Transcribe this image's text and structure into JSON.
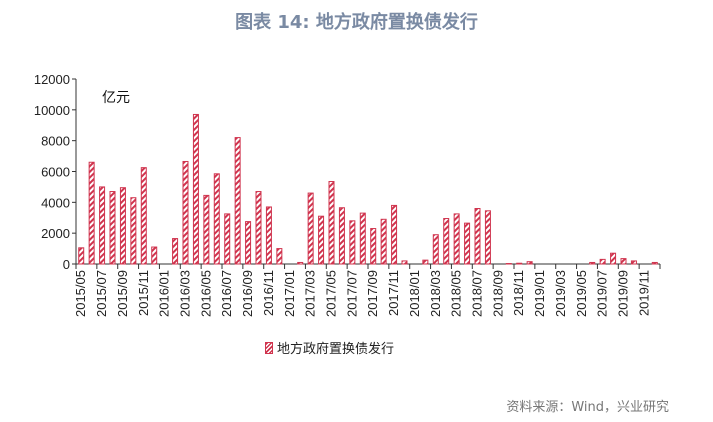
{
  "title": "图表 14: 地方政府置换债发行",
  "source": "资料来源：Wind，兴业研究",
  "colors": {
    "bar": "#d0344e",
    "title": "#7a8aa3"
  },
  "chart_data": {
    "type": "bar",
    "title": "图表 14: 地方政府置换债发行",
    "unit_label": "亿元",
    "ylim": [
      0,
      12000
    ],
    "yticks": [
      0,
      2000,
      4000,
      6000,
      8000,
      10000,
      12000
    ],
    "grid": false,
    "legend_position": "bottom",
    "categories": [
      "2015/05",
      "2015/06",
      "2015/07",
      "2015/08",
      "2015/09",
      "2015/10",
      "2015/11",
      "2015/12",
      "2016/01",
      "2016/02",
      "2016/03",
      "2016/04",
      "2016/05",
      "2016/06",
      "2016/07",
      "2016/08",
      "2016/09",
      "2016/10",
      "2016/11",
      "2016/12",
      "2017/01",
      "2017/02",
      "2017/03",
      "2017/04",
      "2017/05",
      "2017/06",
      "2017/07",
      "2017/08",
      "2017/09",
      "2017/10",
      "2017/11",
      "2017/12",
      "2018/01",
      "2018/02",
      "2018/03",
      "2018/04",
      "2018/05",
      "2018/06",
      "2018/07",
      "2018/08",
      "2018/09",
      "2018/10",
      "2018/11",
      "2018/12",
      "2019/01",
      "2019/02",
      "2019/03",
      "2019/04",
      "2019/05",
      "2019/06",
      "2019/07",
      "2019/08",
      "2019/09",
      "2019/10",
      "2019/11",
      "2019/12"
    ],
    "series": [
      {
        "name": "地方政府置换债发行",
        "values": [
          1050,
          6600,
          5000,
          4700,
          4950,
          4300,
          6250,
          1100,
          0,
          1650,
          6650,
          9700,
          4450,
          5850,
          3250,
          8200,
          2750,
          4700,
          3700,
          1000,
          0,
          100,
          4600,
          3100,
          5350,
          3650,
          2800,
          3300,
          2300,
          2900,
          3800,
          200,
          0,
          250,
          1900,
          2950,
          3250,
          2650,
          3600,
          3450,
          0,
          30,
          50,
          150,
          0,
          0,
          0,
          0,
          0,
          100,
          300,
          700,
          350,
          200,
          0,
          100
        ]
      }
    ]
  }
}
